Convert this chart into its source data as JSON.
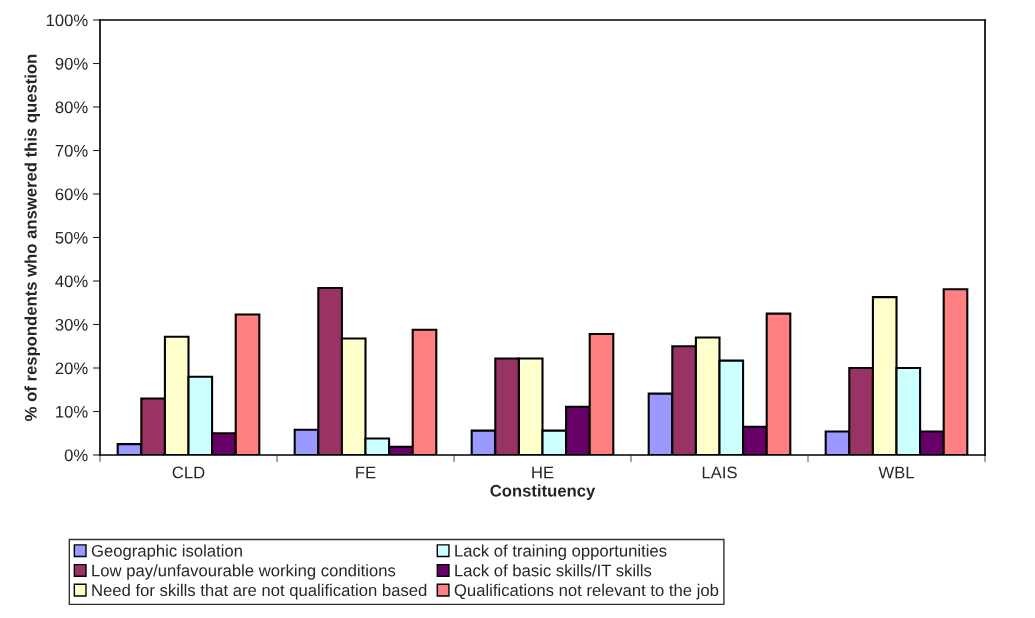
{
  "chart_data": {
    "type": "bar",
    "xlabel": "Constituency",
    "ylabel": "% of respondents who answered this question",
    "categories": [
      "CLD",
      "FE",
      "HE",
      "LAIS",
      "WBL"
    ],
    "series": [
      {
        "name": "Geographic isolation",
        "color": "#9999ff",
        "values": [
          2.5,
          5.8,
          5.6,
          14.1,
          5.4
        ]
      },
      {
        "name": "Low pay/unfavourable working conditions",
        "color": "#993366",
        "values": [
          13,
          38.4,
          22.2,
          25,
          20
        ]
      },
      {
        "name": "Need for skills that are not qualification based",
        "color": "#ffffcc",
        "values": [
          27.2,
          26.8,
          22.2,
          27,
          36.3
        ]
      },
      {
        "name": "Lack of training opportunities",
        "color": "#ccffff",
        "values": [
          18,
          3.8,
          5.6,
          21.7,
          20
        ]
      },
      {
        "name": "Lack of basic skills/IT skills",
        "color": "#660066",
        "values": [
          5,
          1.9,
          11.1,
          6.5,
          5.4
        ]
      },
      {
        "name": "Qualifications not relevant to the job",
        "color": "#ff8080",
        "values": [
          32.3,
          28.8,
          27.8,
          32.5,
          38.1
        ]
      }
    ],
    "ylim": [
      0,
      100
    ],
    "yticks": [
      {
        "value": 0,
        "label": "0%"
      },
      {
        "value": 10,
        "label": "10%"
      },
      {
        "value": 20,
        "label": "20%"
      },
      {
        "value": 30,
        "label": "30%"
      },
      {
        "value": 40,
        "label": "40%"
      },
      {
        "value": 50,
        "label": "50%"
      },
      {
        "value": 60,
        "label": "60%"
      },
      {
        "value": 70,
        "label": "70%"
      },
      {
        "value": 80,
        "label": "80%"
      },
      {
        "value": 90,
        "label": "90%"
      },
      {
        "value": 100,
        "label": "100%"
      }
    ],
    "grid": false,
    "legend": "bottom"
  }
}
